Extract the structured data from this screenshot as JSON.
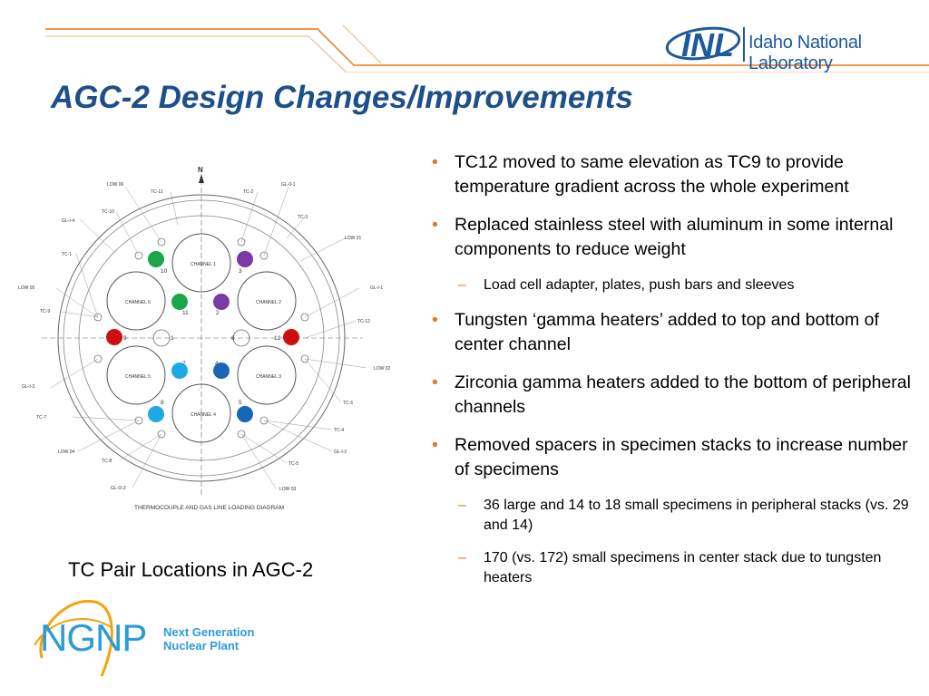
{
  "header": {
    "logo_icon": "inl-logo",
    "logo_text": "Idaho National Laboratory",
    "accent_color": "#e8771e",
    "brand_blue": "#1c5a9e"
  },
  "slide": {
    "title": "AGC-2 Design Changes/Improvements",
    "caption": "TC Pair Locations in AGC-2"
  },
  "diagram": {
    "north": "N",
    "title": "THERMOCOUPLE AND GAS LINE LOADING DIAGRAM",
    "channels": [
      "CHANNEL 1",
      "CHANNEL 2",
      "CHANNEL 3",
      "CHANNEL 4",
      "CHANNEL 5",
      "CHANNEL 6"
    ],
    "position_numbers": [
      "10",
      "3",
      "11",
      "2",
      "9",
      "1",
      "6",
      "12",
      "7",
      "4",
      "8",
      "5"
    ],
    "labels": {
      "low06": "LOW 06",
      "tc11": "TC-11",
      "tc2": "TC-2",
      "gl01": "GL-0-1",
      "tc10": "TC-10",
      "tc3": "TC-3",
      "gli4": "GL-I-4",
      "low01": "LOW 01",
      "tc1": "TC-1",
      "low05": "LOW 05",
      "gli1": "GL-I-1",
      "tc9": "TC-9",
      "tc12": "TC-12",
      "low02": "LOW 02",
      "gli3": "GL-I-3",
      "tc6": "TC-6",
      "tc7": "TC-7",
      "tc4": "TC-4",
      "low04": "LOW 04",
      "gli2": "GL-I-2",
      "tc8": "TC-8",
      "tc5": "TC-5",
      "glo2": "GL-O-2",
      "low03": "LOW 03"
    },
    "marker_colors": {
      "green": "#1aa64b",
      "purple": "#7a3aa6",
      "red": "#cc1010",
      "light_blue": "#1ea8e6",
      "dark_blue": "#1866b8"
    }
  },
  "bullets": [
    {
      "text": "TC12 moved to same elevation as TC9 to provide temperature gradient across the whole experiment",
      "sub": []
    },
    {
      "text": "Replaced stainless steel with aluminum in some internal components to reduce weight",
      "sub": [
        "Load cell adapter, plates, push bars and sleeves"
      ]
    },
    {
      "text": "Tungsten ‘gamma heaters’ added to top and bottom of center channel",
      "sub": []
    },
    {
      "text": "Zirconia gamma heaters added to the bottom of peripheral channels",
      "sub": []
    },
    {
      "text": "Removed spacers in specimen stacks to increase number of specimens",
      "sub": [
        "36 large and 14 to 18 small specimens in peripheral stacks (vs. 29 and 14)",
        "170 (vs. 172) small specimens in center stack due to tungsten heaters"
      ]
    }
  ],
  "ngnp": {
    "logo_icon": "ngnp-logo",
    "acronym": "NGNP",
    "line1": "Next Generation",
    "line2": "Nuclear Plant",
    "blue": "#2c9bd6",
    "orange": "#f4a30e"
  }
}
